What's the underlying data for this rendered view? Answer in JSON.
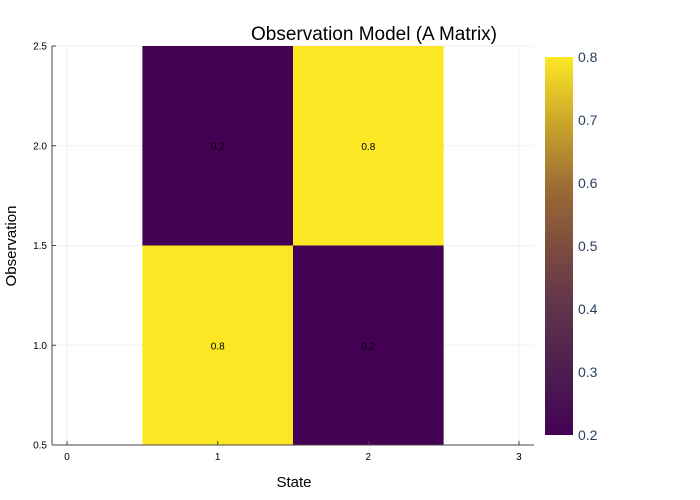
{
  "chart_data": {
    "type": "heatmap",
    "title": "Observation Model (A Matrix)",
    "xlabel": "State",
    "ylabel": "Observation",
    "x_ticks": [
      0,
      1,
      2,
      3
    ],
    "x_tick_labels": [
      "0",
      "1",
      "2",
      "3"
    ],
    "y_ticks": [
      0.5,
      1.0,
      1.5,
      2.0,
      2.5
    ],
    "y_tick_labels": [
      "0.5",
      "1.0",
      "1.5",
      "2.0",
      "2.5"
    ],
    "xlim": [
      -0.1,
      3.1
    ],
    "ylim": [
      0.5,
      2.5
    ],
    "x_categories": [
      1,
      2
    ],
    "y_categories": [
      1,
      2
    ],
    "cells": [
      {
        "x": 1,
        "y": 1,
        "value": 0.8,
        "label": "0.8"
      },
      {
        "x": 2,
        "y": 1,
        "value": 0.2,
        "label": "0.2"
      },
      {
        "x": 1,
        "y": 2,
        "value": 0.2,
        "label": "0.2"
      },
      {
        "x": 2,
        "y": 2,
        "value": 0.8,
        "label": "0.8"
      }
    ],
    "colorbar": {
      "range": [
        0.2,
        0.8
      ],
      "ticks": [
        0.2,
        0.3,
        0.4,
        0.5,
        0.6,
        0.7,
        0.8
      ],
      "tick_labels": [
        "0.2",
        "0.3",
        "0.4",
        "0.5",
        "0.6",
        "0.7",
        "0.8"
      ]
    },
    "colormap": "viridis",
    "low_color": "#440154",
    "high_color": "#fde725",
    "grid": true,
    "colors": {
      "tick_text": "#000000",
      "colorbar_text": "#2a3f5f",
      "grid": "#f0f0f0",
      "axis": "#444444"
    }
  }
}
